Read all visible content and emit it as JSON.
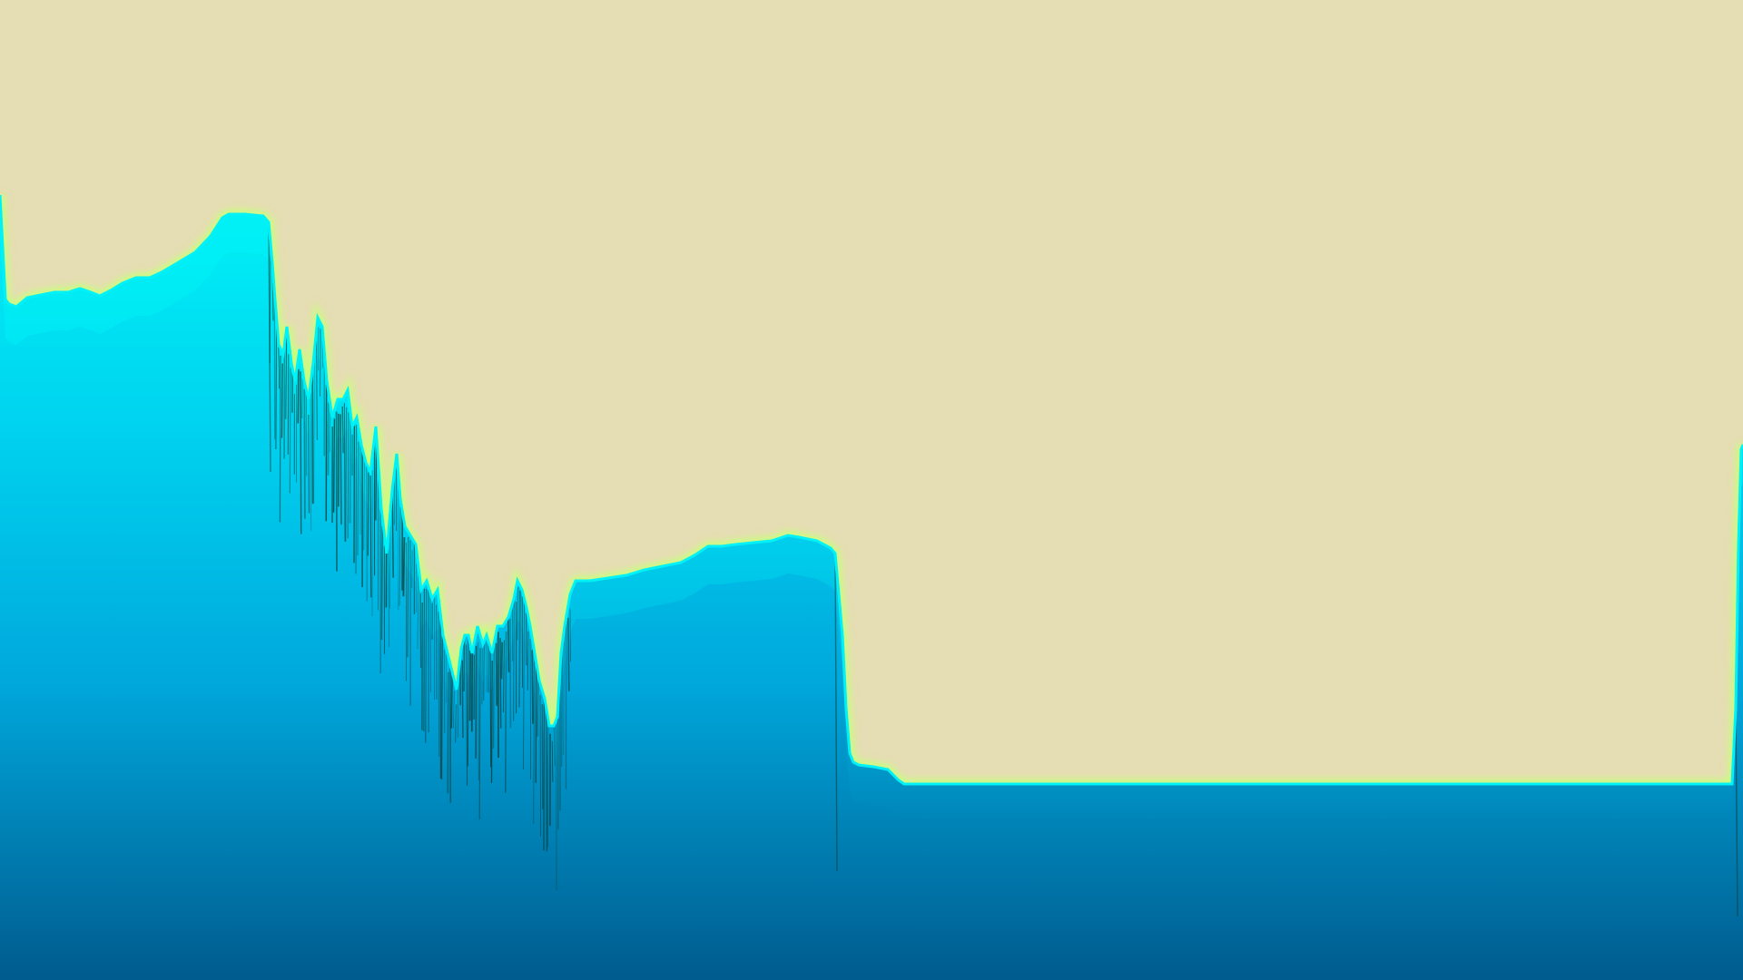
{
  "palette": {
    "sky": "#e5ddb3",
    "glow": "#c8ff7a",
    "cyan_top": "#00f2f6",
    "cyan": "#00d2ef",
    "blue_mid": "#00a8dc",
    "blue_deep": "#006fa6",
    "blue_dark": "#005b8e",
    "spike_ink": "#0b3b35"
  },
  "icons": []
}
